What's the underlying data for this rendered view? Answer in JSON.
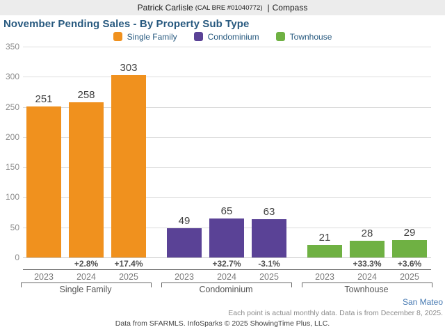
{
  "header": {
    "agent": "Patrick Carlisle",
    "license": "(CAL BRE #01040772)",
    "separator": "|",
    "brokerage": "Compass"
  },
  "chart_data": {
    "type": "bar",
    "title": "November Pending Sales - By Property Sub Type",
    "ylim": [
      0,
      350
    ],
    "yticks": [
      0,
      50,
      100,
      150,
      200,
      250,
      300,
      350
    ],
    "grid": "horizontal",
    "legend_position": "top-center",
    "categories": [
      "2023",
      "2024",
      "2025"
    ],
    "series": [
      {
        "name": "Single Family",
        "color": "#F0911E",
        "values": [
          251,
          258,
          303
        ],
        "pct_change": [
          "",
          "+2.8%",
          "+17.4%"
        ]
      },
      {
        "name": "Condominium",
        "color": "#5A4296",
        "values": [
          49,
          65,
          63
        ],
        "pct_change": [
          "",
          "+32.7%",
          "-3.1%"
        ]
      },
      {
        "name": "Townhouse",
        "color": "#6FB143",
        "values": [
          21,
          28,
          29
        ],
        "pct_change": [
          "",
          "+33.3%",
          "+3.6%"
        ]
      }
    ]
  },
  "footer": {
    "region": "San Mateo",
    "note": "Each point is actual monthly data. Data is from December 8, 2025.",
    "attribution": "Data from SFARMLS. InfoSparks © 2025 ShowingTime Plus, LLC."
  }
}
